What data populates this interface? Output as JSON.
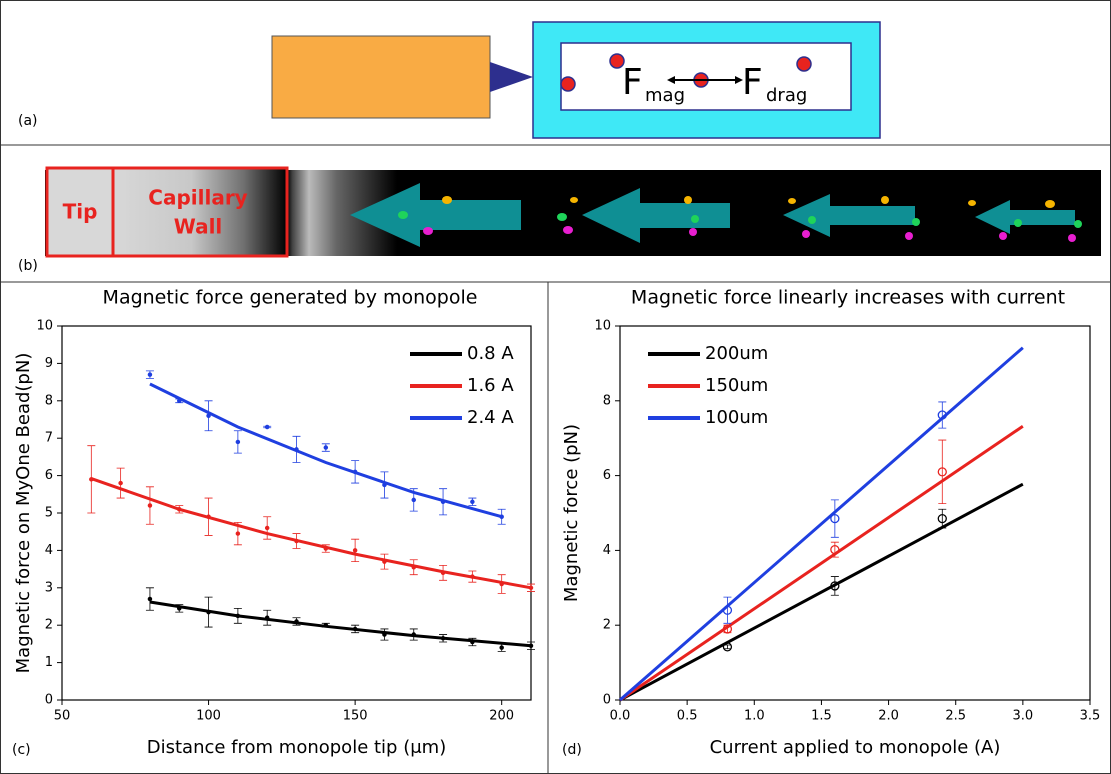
{
  "panels": {
    "a": {
      "label": "(a)",
      "force_symbol": "F",
      "mag_subscript": "mag",
      "drag_subscript": "drag"
    },
    "b": {
      "label": "(b)",
      "tip": "Tip",
      "wall_line1": "Capillary",
      "wall_line2": "Wall"
    }
  },
  "chart_data": [
    {
      "type": "scatter",
      "panel_label": "(c)",
      "title": "Magnetic force generated by monopole",
      "x_label": "Distance from monopole tip (μm)",
      "y_label": "Magnetic force on MyOne Bead(pN)",
      "xlim": [
        50,
        210
      ],
      "ylim": [
        0,
        10
      ],
      "xticks": [
        50,
        100,
        150,
        200
      ],
      "yticks": [
        0,
        1,
        2,
        3,
        4,
        5,
        6,
        7,
        8,
        9,
        10
      ],
      "marker": "filled",
      "legend": "top-right",
      "series": [
        {
          "name": "0.8 A",
          "color": "#000000",
          "x": [
            80,
            90,
            100,
            110,
            120,
            130,
            140,
            150,
            160,
            170,
            180,
            190,
            200,
            210
          ],
          "values": [
            2.7,
            2.45,
            2.35,
            2.25,
            2.2,
            2.1,
            2.0,
            1.9,
            1.75,
            1.75,
            1.65,
            1.55,
            1.4,
            1.45
          ],
          "errors": [
            0.3,
            0.1,
            0.4,
            0.2,
            0.2,
            0.1,
            0.05,
            0.1,
            0.15,
            0.15,
            0.1,
            0.1,
            0.1,
            0.1
          ],
          "fit": {
            "x": [
              80,
              110,
              140,
              170,
              210
            ],
            "values": [
              2.62,
              2.25,
              1.97,
              1.72,
              1.45
            ]
          }
        },
        {
          "name": "1.6 A",
          "color": "#e8231f",
          "x": [
            60,
            70,
            80,
            90,
            100,
            110,
            120,
            130,
            140,
            150,
            160,
            170,
            180,
            190,
            200,
            210
          ],
          "values": [
            5.9,
            5.8,
            5.2,
            5.1,
            4.9,
            4.45,
            4.6,
            4.25,
            4.05,
            4.0,
            3.7,
            3.55,
            3.4,
            3.3,
            3.1,
            3.0
          ],
          "errors": [
            0.9,
            0.4,
            0.5,
            0.1,
            0.5,
            0.3,
            0.3,
            0.2,
            0.1,
            0.3,
            0.2,
            0.2,
            0.2,
            0.15,
            0.25,
            0.1
          ],
          "fit": {
            "x": [
              60,
              90,
              120,
              150,
              180,
              210
            ],
            "values": [
              5.92,
              5.1,
              4.45,
              3.9,
              3.43,
              3.0
            ]
          }
        },
        {
          "name": "2.4 A",
          "color": "#1f3fe0",
          "x": [
            80,
            90,
            100,
            110,
            120,
            130,
            140,
            150,
            160,
            170,
            180,
            190,
            200
          ],
          "values": [
            8.7,
            8.0,
            7.6,
            6.9,
            7.3,
            6.7,
            6.75,
            6.1,
            5.75,
            5.35,
            5.3,
            5.3,
            4.9
          ],
          "errors": [
            0.1,
            0.05,
            0.4,
            0.3,
            0.02,
            0.35,
            0.1,
            0.3,
            0.35,
            0.3,
            0.35,
            0.1,
            0.2
          ],
          "fit": {
            "x": [
              80,
              110,
              140,
              170,
              200
            ],
            "values": [
              8.45,
              7.3,
              6.35,
              5.55,
              4.9
            ]
          }
        }
      ]
    },
    {
      "type": "scatter",
      "panel_label": "(d)",
      "title": "Magnetic force linearly increases with current",
      "x_label": "Current applied to monopole (A)",
      "y_label": "Magnetic force (pN)",
      "xlim": [
        0,
        3.5
      ],
      "ylim": [
        0,
        10
      ],
      "xticks": [
        {
          "value": 0,
          "label": "0.0"
        },
        {
          "value": 0.5,
          "label": "0.5"
        },
        {
          "value": 1,
          "label": "1.0"
        },
        {
          "value": 1.5,
          "label": "1.5"
        },
        {
          "value": 2,
          "label": "2.0"
        },
        {
          "value": 2.5,
          "label": "2.5"
        },
        {
          "value": 3,
          "label": "3.0"
        },
        {
          "value": 3.5,
          "label": "3.5"
        }
      ],
      "yticks": [
        0,
        2,
        4,
        6,
        8,
        10
      ],
      "marker": "open",
      "legend": "top-left",
      "series": [
        {
          "name": "200um",
          "color": "#000000",
          "x": [
            0.8,
            1.6,
            2.4
          ],
          "values": [
            1.42,
            3.05,
            4.85
          ],
          "errors": [
            0.05,
            0.25,
            0.25
          ],
          "fit": {
            "x": [
              0,
              3
            ],
            "values": [
              0,
              5.77
            ]
          }
        },
        {
          "name": "150um",
          "color": "#e8231f",
          "x": [
            0.8,
            1.6,
            2.4
          ],
          "values": [
            1.9,
            4.02,
            6.1
          ],
          "errors": [
            0.1,
            0.2,
            0.85
          ],
          "fit": {
            "x": [
              0,
              3
            ],
            "values": [
              0,
              7.32
            ]
          }
        },
        {
          "name": "100um",
          "color": "#1f3fe0",
          "x": [
            0.8,
            1.6,
            2.4
          ],
          "values": [
            2.4,
            4.85,
            7.62
          ],
          "errors": [
            0.35,
            0.5,
            0.35
          ],
          "fit": {
            "x": [
              0,
              3
            ],
            "values": [
              0,
              9.42
            ]
          }
        }
      ]
    }
  ]
}
